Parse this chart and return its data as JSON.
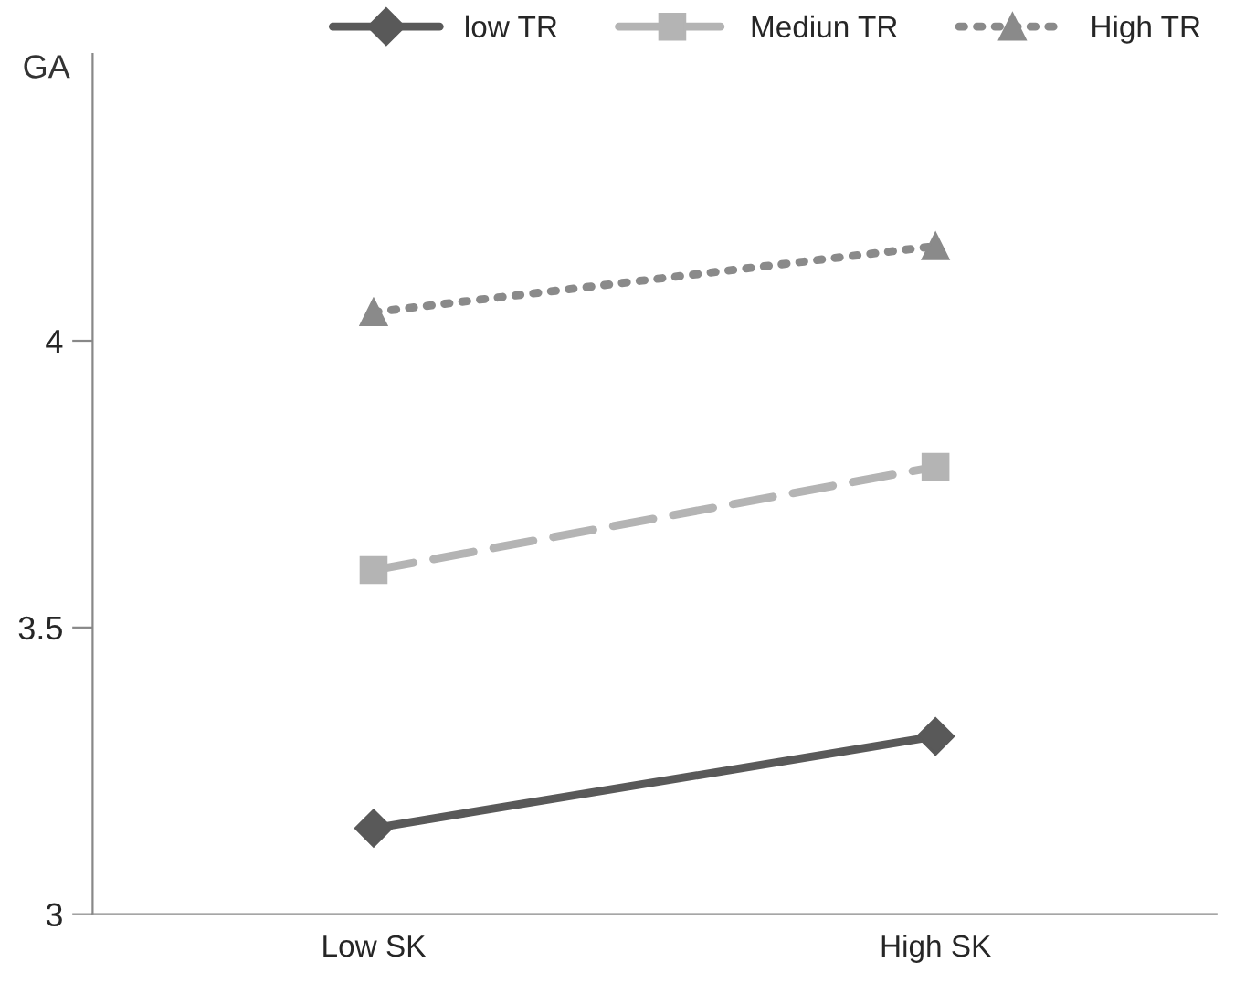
{
  "chart_data": {
    "type": "line",
    "ylabel": "GA",
    "categories": [
      "Low SK",
      "High SK"
    ],
    "series": [
      {
        "name": "low TR",
        "color": "#595959",
        "values": [
          3.15,
          3.31
        ],
        "marker": "diamond",
        "line_style": "solid"
      },
      {
        "name": "Mediun TR",
        "color": "#b4b4b4",
        "values": [
          3.6,
          3.78
        ],
        "marker": "square",
        "line_style": "dashed"
      },
      {
        "name": "High TR",
        "color": "#8a8a8a",
        "values": [
          4.05,
          4.165
        ],
        "marker": "triangle",
        "line_style": "dotted"
      }
    ],
    "ylim": [
      3,
      4.5
    ],
    "yticks": [
      3,
      3.5,
      4
    ],
    "grid": false,
    "legend": "top right"
  }
}
